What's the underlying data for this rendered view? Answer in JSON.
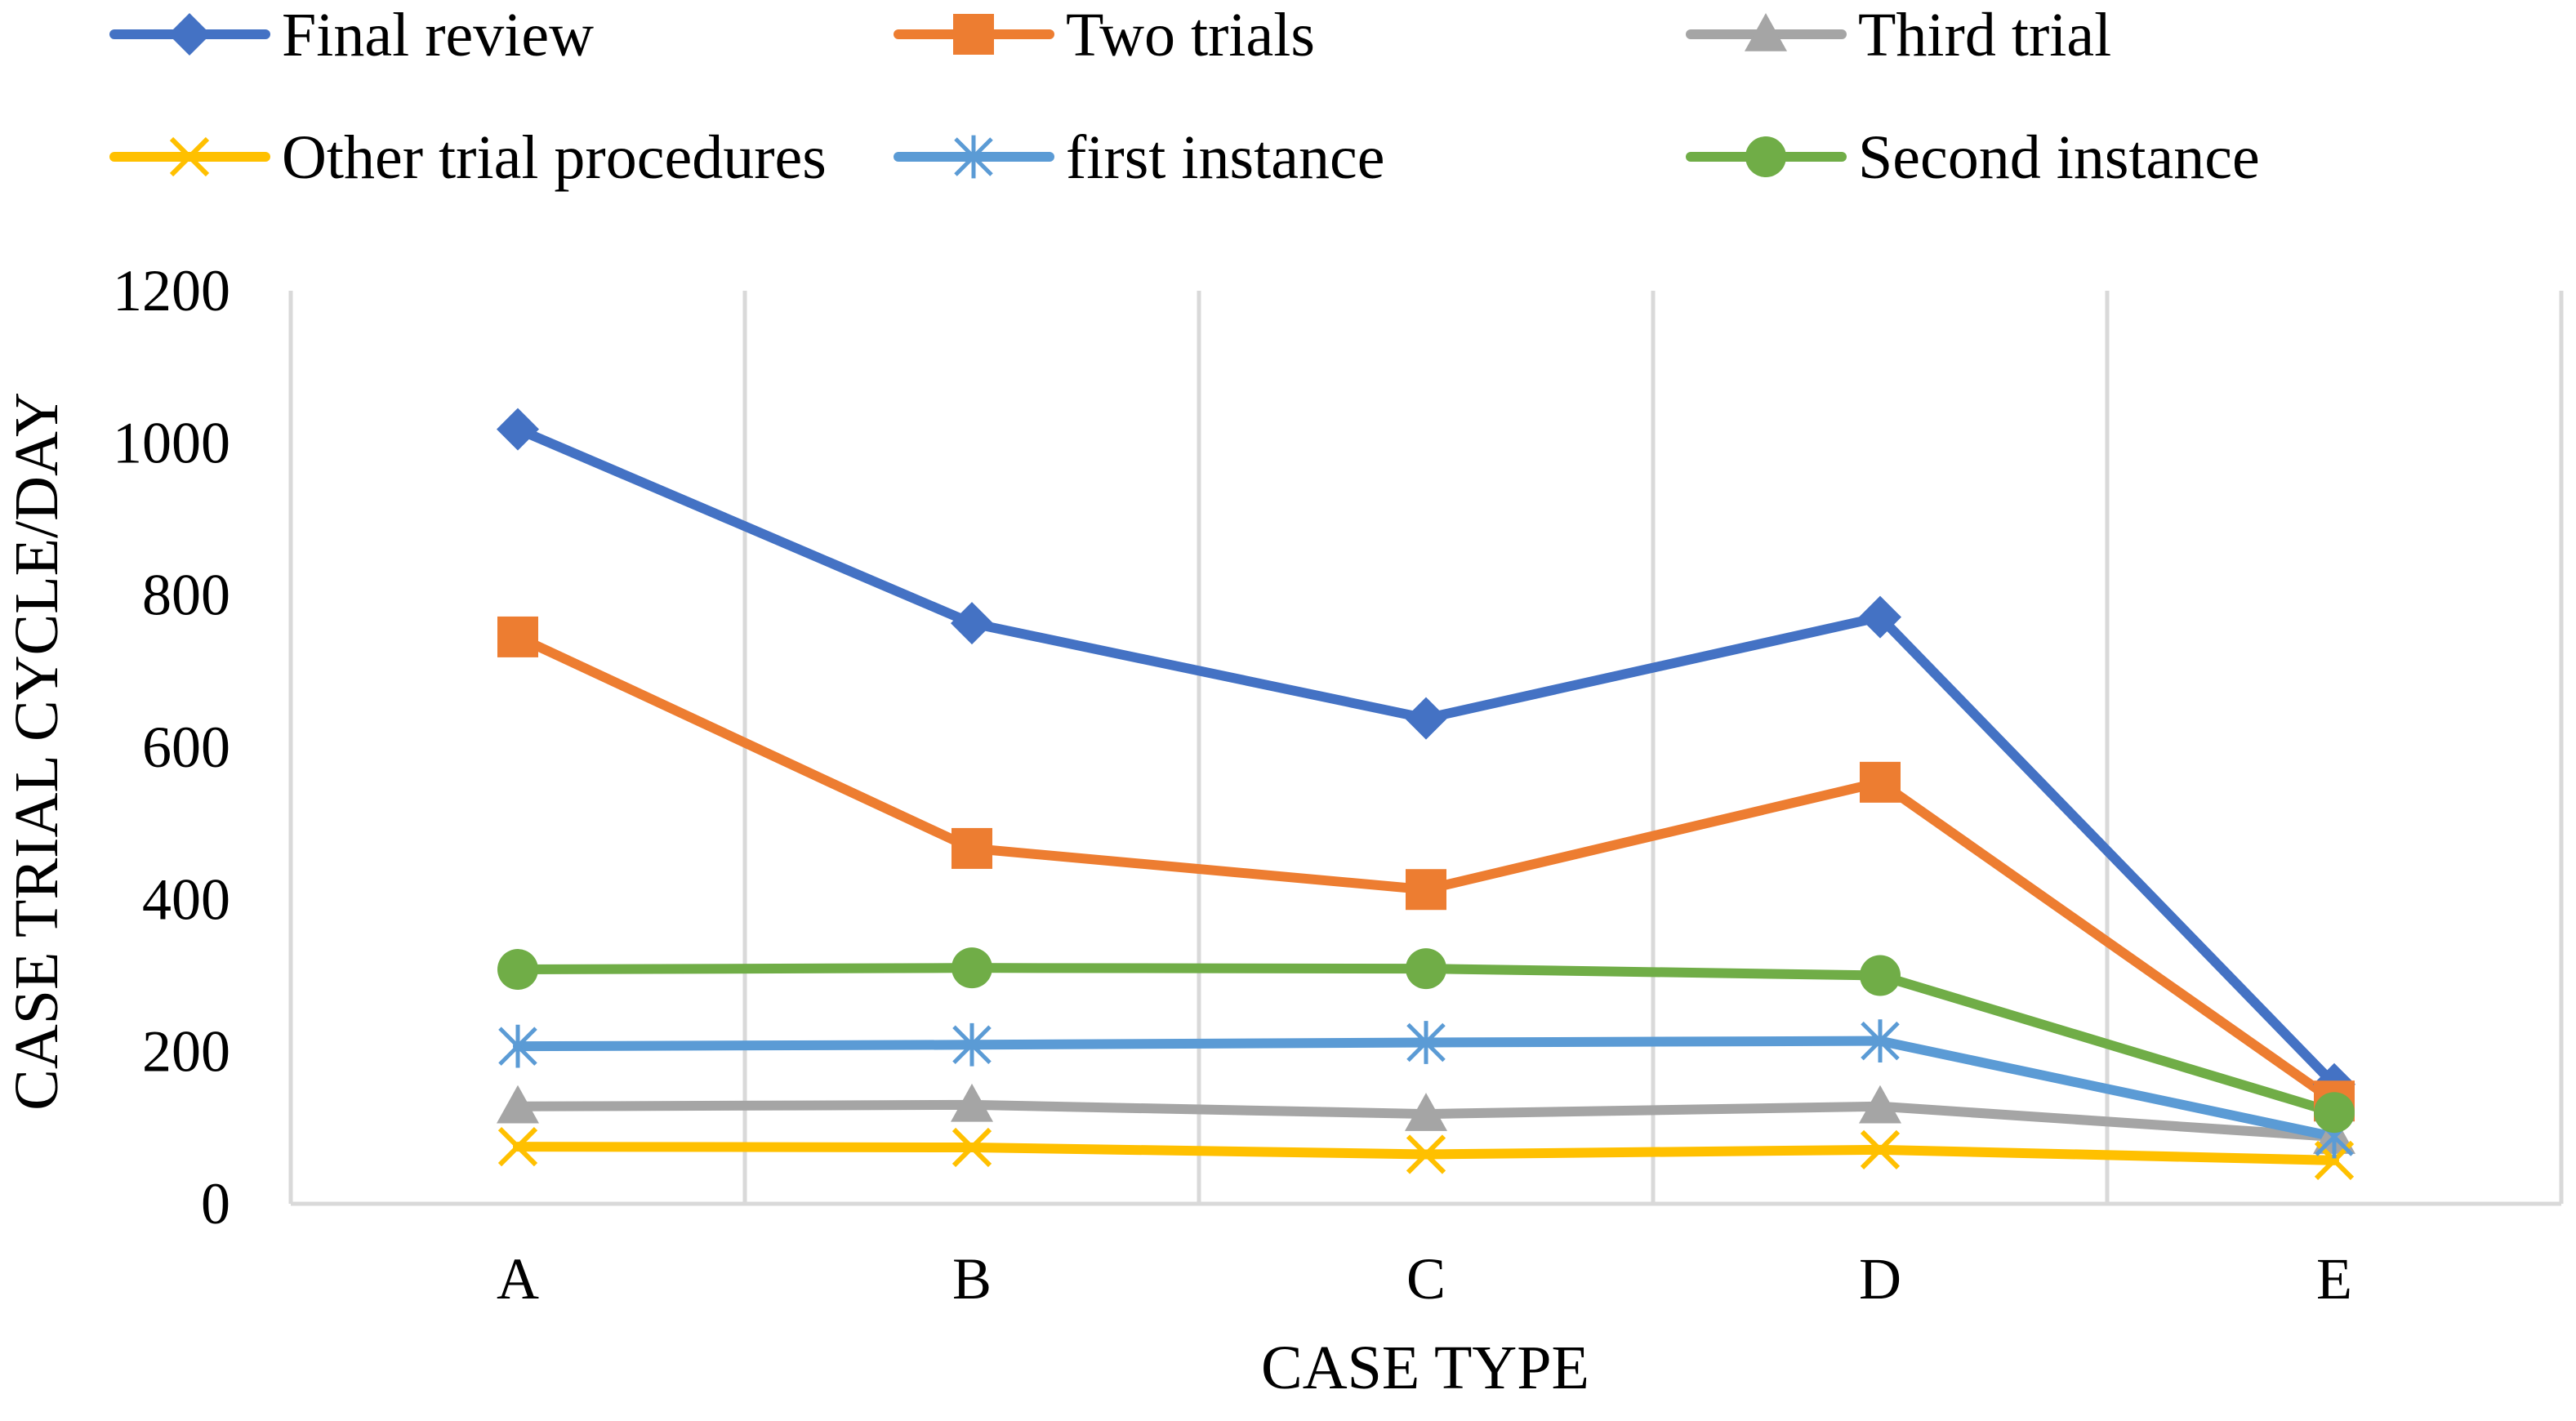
{
  "chart_data": {
    "type": "line",
    "title": "",
    "xlabel": "CASE TYPE",
    "ylabel": "CASE TRIAL CYCLE/DAY",
    "categories": [
      "A",
      "B",
      "C",
      "D",
      "E"
    ],
    "ylim": [
      0,
      1200
    ],
    "yticks": [
      0,
      200,
      400,
      600,
      800,
      1000,
      1200
    ],
    "grid": "vertical",
    "legend_position": "top",
    "series": [
      {
        "name": "Final review",
        "color": "#4472C4",
        "marker": "diamond",
        "values": [
          1018,
          763,
          638,
          771,
          157
        ]
      },
      {
        "name": "Two trials",
        "color": "#ED7D31",
        "marker": "square",
        "values": [
          745,
          467,
          413,
          554,
          135
        ]
      },
      {
        "name": "Third trial",
        "color": "#A5A5A5",
        "marker": "triangle",
        "values": [
          128,
          130,
          118,
          128,
          88
        ]
      },
      {
        "name": "Other trial procedures",
        "color": "#FFC000",
        "marker": "x",
        "values": [
          75,
          74,
          65,
          71,
          57
        ]
      },
      {
        "name": "first instance",
        "color": "#5B9BD5",
        "marker": "star",
        "values": [
          207,
          209,
          212,
          214,
          88
        ]
      },
      {
        "name": "Second instance",
        "color": "#70AD47",
        "marker": "circle",
        "values": [
          308,
          310,
          309,
          300,
          120
        ]
      }
    ]
  }
}
